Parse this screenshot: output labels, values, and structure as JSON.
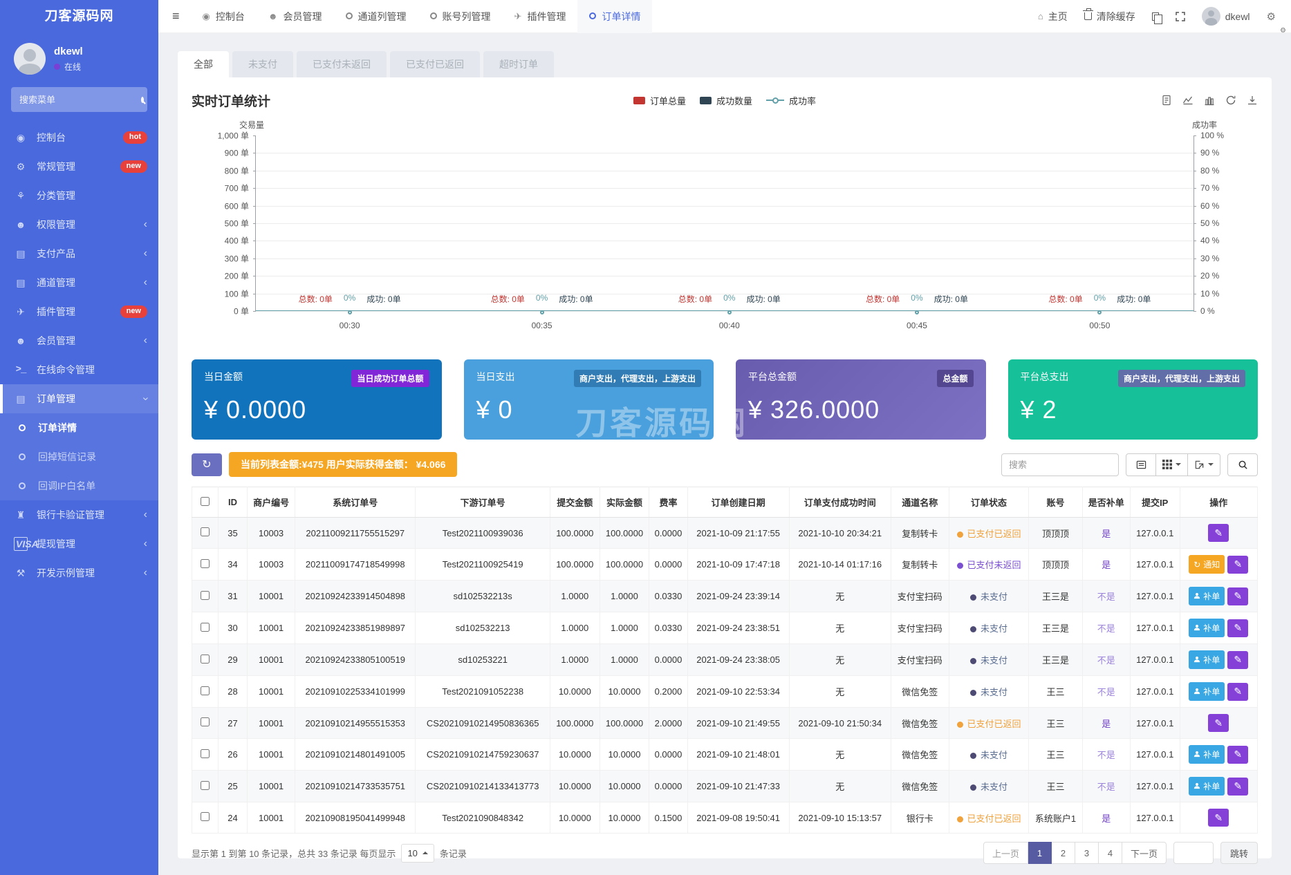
{
  "brand": {
    "logo": "刀客源码网"
  },
  "user": {
    "name": "dkewl",
    "status": "在线"
  },
  "sidebar": {
    "search_placeholder": "搜索菜单",
    "items": [
      {
        "name": "console",
        "label": "控制台",
        "icon": "dashboard-icon",
        "badge": "hot"
      },
      {
        "name": "general",
        "label": "常规管理",
        "icon": "gears-icon",
        "badge": "new"
      },
      {
        "name": "category",
        "label": "分类管理",
        "icon": "leaf-icon"
      },
      {
        "name": "permission",
        "label": "权限管理",
        "icon": "users-icon",
        "chevron": true
      },
      {
        "name": "pay-product",
        "label": "支付产品",
        "icon": "list-icon",
        "chevron": true
      },
      {
        "name": "channel",
        "label": "通道管理",
        "icon": "list-icon",
        "chevron": true
      },
      {
        "name": "plugin",
        "label": "插件管理",
        "icon": "rocket-icon",
        "badge": "new"
      },
      {
        "name": "member",
        "label": "会员管理",
        "icon": "user-icon",
        "chevron": true
      },
      {
        "name": "online-command",
        "label": "在线命令管理",
        "icon": "terminal-icon"
      },
      {
        "name": "orders",
        "label": "订单管理",
        "icon": "list-icon",
        "chevron": true,
        "expanded": true,
        "active": true
      },
      {
        "name": "order-detail",
        "label": "订单详情",
        "sub": true,
        "active": true
      },
      {
        "name": "callback-sms",
        "label": "回掉短信记录",
        "sub": true
      },
      {
        "name": "callback-ip",
        "label": "回调IP白名单",
        "sub": true
      },
      {
        "name": "bankcard",
        "label": "银行卡验证管理",
        "icon": "bank-icon",
        "chevron": true
      },
      {
        "name": "withdraw",
        "label": "提现管理",
        "icon": "visa-icon",
        "chevron": true
      },
      {
        "name": "dev-example",
        "label": "开发示例管理",
        "icon": "code-icon",
        "chevron": true
      }
    ]
  },
  "navbar": {
    "items": [
      {
        "name": "console",
        "label": "控制台",
        "icon": "dashboard-icon"
      },
      {
        "name": "member",
        "label": "会员管理",
        "icon": "user-icon"
      },
      {
        "name": "channel-list",
        "label": "通道列管理",
        "icon": "circle-icon"
      },
      {
        "name": "account-list",
        "label": "账号列管理",
        "icon": "circle-icon"
      },
      {
        "name": "plugin",
        "label": "插件管理",
        "icon": "rocket-icon"
      },
      {
        "name": "order-detail",
        "label": "订单详情",
        "icon": "circle-icon",
        "active": true
      }
    ],
    "right": {
      "home_label": "主页",
      "clear_cache_label": "清除缓存",
      "user_name": "dkewl"
    }
  },
  "tabs": [
    {
      "label": "全部",
      "active": true
    },
    {
      "label": "未支付"
    },
    {
      "label": "已支付未返回"
    },
    {
      "label": "已支付已返回"
    },
    {
      "label": "超时订单"
    }
  ],
  "chart": {
    "title": "实时订单统计",
    "legend": [
      {
        "label": "订单总量",
        "swatch": "rect",
        "color": "#c23531"
      },
      {
        "label": "成功数量",
        "swatch": "rect",
        "color": "#2f4554"
      },
      {
        "label": "成功率",
        "swatch": "line",
        "color": "#61a0a8"
      }
    ],
    "axis": {
      "left_title": "交易量",
      "right_title": "成功率",
      "left_ticks": [
        "1,000 单",
        "900 单",
        "800 单",
        "700 单",
        "600 单",
        "500 单",
        "400 单",
        "300 单",
        "200 单",
        "100 单",
        "0 单"
      ],
      "right_ticks": [
        "100 %",
        "90 %",
        "80 %",
        "70 %",
        "60 %",
        "50 %",
        "40 %",
        "30 %",
        "20 %",
        "10 %",
        "0 %"
      ],
      "x_ticks": [
        "00:30",
        "00:35",
        "00:40",
        "00:45",
        "00:50"
      ],
      "x_tick_pct": [
        10,
        30.5,
        50.5,
        70.5,
        90
      ]
    },
    "point_groups": [
      {
        "total": "总数: 0单",
        "rate": "0%",
        "success": "成功: 0单"
      },
      {
        "total": "总数: 0单",
        "rate": "0%",
        "success": "成功: 0单"
      },
      {
        "total": "总数: 0单",
        "rate": "0%",
        "success": "成功: 0单"
      },
      {
        "total": "总数: 0单",
        "rate": "0%",
        "success": "成功: 0单"
      },
      {
        "total": "总数: 0单",
        "rate": "0%",
        "success": "成功: 0单"
      }
    ],
    "chart_data": {
      "type": "bar",
      "title": "实时订单统计",
      "x": [
        "00:30",
        "00:35",
        "00:40",
        "00:45",
        "00:50"
      ],
      "series": [
        {
          "name": "订单总量",
          "type": "bar",
          "values": [
            0,
            0,
            0,
            0,
            0
          ],
          "color": "#c23531"
        },
        {
          "name": "成功数量",
          "type": "bar",
          "values": [
            0,
            0,
            0,
            0,
            0
          ],
          "color": "#2f4554"
        },
        {
          "name": "成功率",
          "type": "line",
          "values": [
            0,
            0,
            0,
            0,
            0
          ],
          "unit": "%",
          "color": "#61a0a8"
        }
      ],
      "y_left": {
        "label": "交易量",
        "min": 0,
        "max": 1000,
        "step": 100,
        "unit": "单"
      },
      "y_right": {
        "label": "成功率",
        "min": 0,
        "max": 100,
        "step": 10,
        "unit": "%"
      },
      "grid": true,
      "legend_position": "top-center"
    }
  },
  "watermark": {
    "text": "刀客源码网"
  },
  "cards": [
    {
      "title": "当日金额",
      "badge": "当日成功订单总额",
      "value": "¥ 0.0000",
      "color": "#1273bd",
      "badge_color": "#8227d8"
    },
    {
      "title": "当日支出",
      "badge": "商户支出，代理支出，上游支出",
      "value": "¥ 0",
      "color": "#4aa0dd",
      "badge_color": "rgba(20,80,130,0.45)"
    },
    {
      "title": "平台总金额",
      "badge": "总金额",
      "value": "¥ 326.0000",
      "color": "linear-gradient(135deg,#685cae,#7d71c4)",
      "badge_color": "rgba(55,40,105,0.55)"
    },
    {
      "title": "平台总支出",
      "badge": "商户支出，代理支出，上游支出",
      "value": "¥ 2",
      "color": "#16c199",
      "badge_color": "rgba(110,95,170,0.85)"
    }
  ],
  "toolbar": {
    "summary": "当前列表金额:¥475 用户实际获得金额： ¥4.066",
    "search_placeholder": "搜索"
  },
  "table": {
    "columns": [
      "ID",
      "商户编号",
      "系统订单号",
      "下游订单号",
      "提交金额",
      "实际金额",
      "费率",
      "订单创建日期",
      "订单支付成功时间",
      "通道名称",
      "订单状态",
      "账号",
      "是否补单",
      "提交IP",
      "操作"
    ],
    "status_styles": {
      "returned": {
        "label": "已支付已返回",
        "color": "#f0a23c",
        "dot": "#f0a23c"
      },
      "paid_noreturn": {
        "label": "已支付未返回",
        "color": "#7a4fd0",
        "dot": "#7a4fd0"
      },
      "unpaid": {
        "label": "未支付",
        "color": "#5b6e91",
        "dot": "#4d4a74"
      }
    },
    "reissue_colors": {
      "yes": "#7141c9",
      "no": "#9b82db"
    },
    "actions_def": {
      "notify": {
        "label": "通知",
        "icon": "refresh-icon",
        "color": "#f5a623"
      },
      "reissue": {
        "label": "补单",
        "icon": "person-icon",
        "color": "#38a7e3"
      },
      "edit": {
        "label": "",
        "icon": "pencil-icon",
        "color": "#8540d8"
      }
    },
    "rows": [
      {
        "id": "35",
        "merchant": "10003",
        "sys_no": "20211009211755515297",
        "down_no": "Test2021100939036",
        "submit": "100.0000",
        "actual": "100.0000",
        "rate": "0.0000",
        "created": "2021-10-09 21:17:55",
        "paid": "2021-10-10 20:34:21",
        "channel": "复制转卡",
        "status": "returned",
        "account": "顶顶顶",
        "reissue": "是",
        "ip": "127.0.0.1",
        "actions": [
          "edit"
        ]
      },
      {
        "id": "34",
        "merchant": "10003",
        "sys_no": "20211009174718549998",
        "down_no": "Test2021100925419",
        "submit": "100.0000",
        "actual": "100.0000",
        "rate": "0.0000",
        "created": "2021-10-09 17:47:18",
        "paid": "2021-10-14 01:17:16",
        "channel": "复制转卡",
        "status": "paid_noreturn",
        "account": "顶顶顶",
        "reissue": "是",
        "ip": "127.0.0.1",
        "actions": [
          "notify",
          "edit"
        ]
      },
      {
        "id": "31",
        "merchant": "10001",
        "sys_no": "20210924233914504898",
        "down_no": "sd102532213s",
        "submit": "1.0000",
        "actual": "1.0000",
        "rate": "0.0330",
        "created": "2021-09-24 23:39:14",
        "paid": "无",
        "channel": "支付宝扫码",
        "status": "unpaid",
        "account": "王三是",
        "reissue": "不是",
        "ip": "127.0.0.1",
        "actions": [
          "reissue",
          "edit"
        ]
      },
      {
        "id": "30",
        "merchant": "10001",
        "sys_no": "20210924233851989897",
        "down_no": "sd102532213",
        "submit": "1.0000",
        "actual": "1.0000",
        "rate": "0.0330",
        "created": "2021-09-24 23:38:51",
        "paid": "无",
        "channel": "支付宝扫码",
        "status": "unpaid",
        "account": "王三是",
        "reissue": "不是",
        "ip": "127.0.0.1",
        "actions": [
          "reissue",
          "edit"
        ]
      },
      {
        "id": "29",
        "merchant": "10001",
        "sys_no": "20210924233805100519",
        "down_no": "sd10253221",
        "submit": "1.0000",
        "actual": "1.0000",
        "rate": "0.0000",
        "created": "2021-09-24 23:38:05",
        "paid": "无",
        "channel": "支付宝扫码",
        "status": "unpaid",
        "account": "王三是",
        "reissue": "不是",
        "ip": "127.0.0.1",
        "actions": [
          "reissue",
          "edit"
        ]
      },
      {
        "id": "28",
        "merchant": "10001",
        "sys_no": "20210910225334101999",
        "down_no": "Test2021091052238",
        "submit": "10.0000",
        "actual": "10.0000",
        "rate": "0.2000",
        "created": "2021-09-10 22:53:34",
        "paid": "无",
        "channel": "微信免签",
        "status": "unpaid",
        "account": "王三",
        "reissue": "不是",
        "ip": "127.0.0.1",
        "actions": [
          "reissue",
          "edit"
        ]
      },
      {
        "id": "27",
        "merchant": "10001",
        "sys_no": "20210910214955515353",
        "down_no": "CS20210910214950836365",
        "submit": "100.0000",
        "actual": "100.0000",
        "rate": "2.0000",
        "created": "2021-09-10 21:49:55",
        "paid": "2021-09-10 21:50:34",
        "channel": "微信免签",
        "status": "returned",
        "account": "王三",
        "reissue": "是",
        "ip": "127.0.0.1",
        "actions": [
          "edit"
        ]
      },
      {
        "id": "26",
        "merchant": "10001",
        "sys_no": "20210910214801491005",
        "down_no": "CS20210910214759230637",
        "submit": "10.0000",
        "actual": "10.0000",
        "rate": "0.0000",
        "created": "2021-09-10 21:48:01",
        "paid": "无",
        "channel": "微信免签",
        "status": "unpaid",
        "account": "王三",
        "reissue": "不是",
        "ip": "127.0.0.1",
        "actions": [
          "reissue",
          "edit"
        ]
      },
      {
        "id": "25",
        "merchant": "10001",
        "sys_no": "20210910214733535751",
        "down_no": "CS20210910214133413773",
        "submit": "10.0000",
        "actual": "10.0000",
        "rate": "0.0000",
        "created": "2021-09-10 21:47:33",
        "paid": "无",
        "channel": "微信免签",
        "status": "unpaid",
        "account": "王三",
        "reissue": "不是",
        "ip": "127.0.0.1",
        "actions": [
          "reissue",
          "edit"
        ]
      },
      {
        "id": "24",
        "merchant": "10001",
        "sys_no": "20210908195041499948",
        "down_no": "Test2021090848342",
        "submit": "10.0000",
        "actual": "10.0000",
        "rate": "0.1500",
        "created": "2021-09-08 19:50:41",
        "paid": "2021-09-10 15:13:57",
        "channel": "银行卡",
        "status": "returned",
        "account": "系统账户1",
        "reissue": "是",
        "ip": "127.0.0.1",
        "actions": [
          "edit"
        ]
      }
    ]
  },
  "pagination": {
    "summary_prefix": "显示第 1 到第 10 条记录，总共 33 条记录 每页显示",
    "page_size": "10",
    "summary_suffix": "条记录",
    "prev_label": "上一页",
    "next_label": "下一页",
    "pages": [
      "1",
      "2",
      "3",
      "4"
    ],
    "active_page": "1",
    "jump_label": "跳转"
  },
  "colors": {
    "sidebar_bg": "#4a69dd",
    "accent_blue": "#4a69dd",
    "orange": "#f5a623",
    "refresh_purple": "#6a6fc0",
    "active_page": "#575ca2"
  }
}
